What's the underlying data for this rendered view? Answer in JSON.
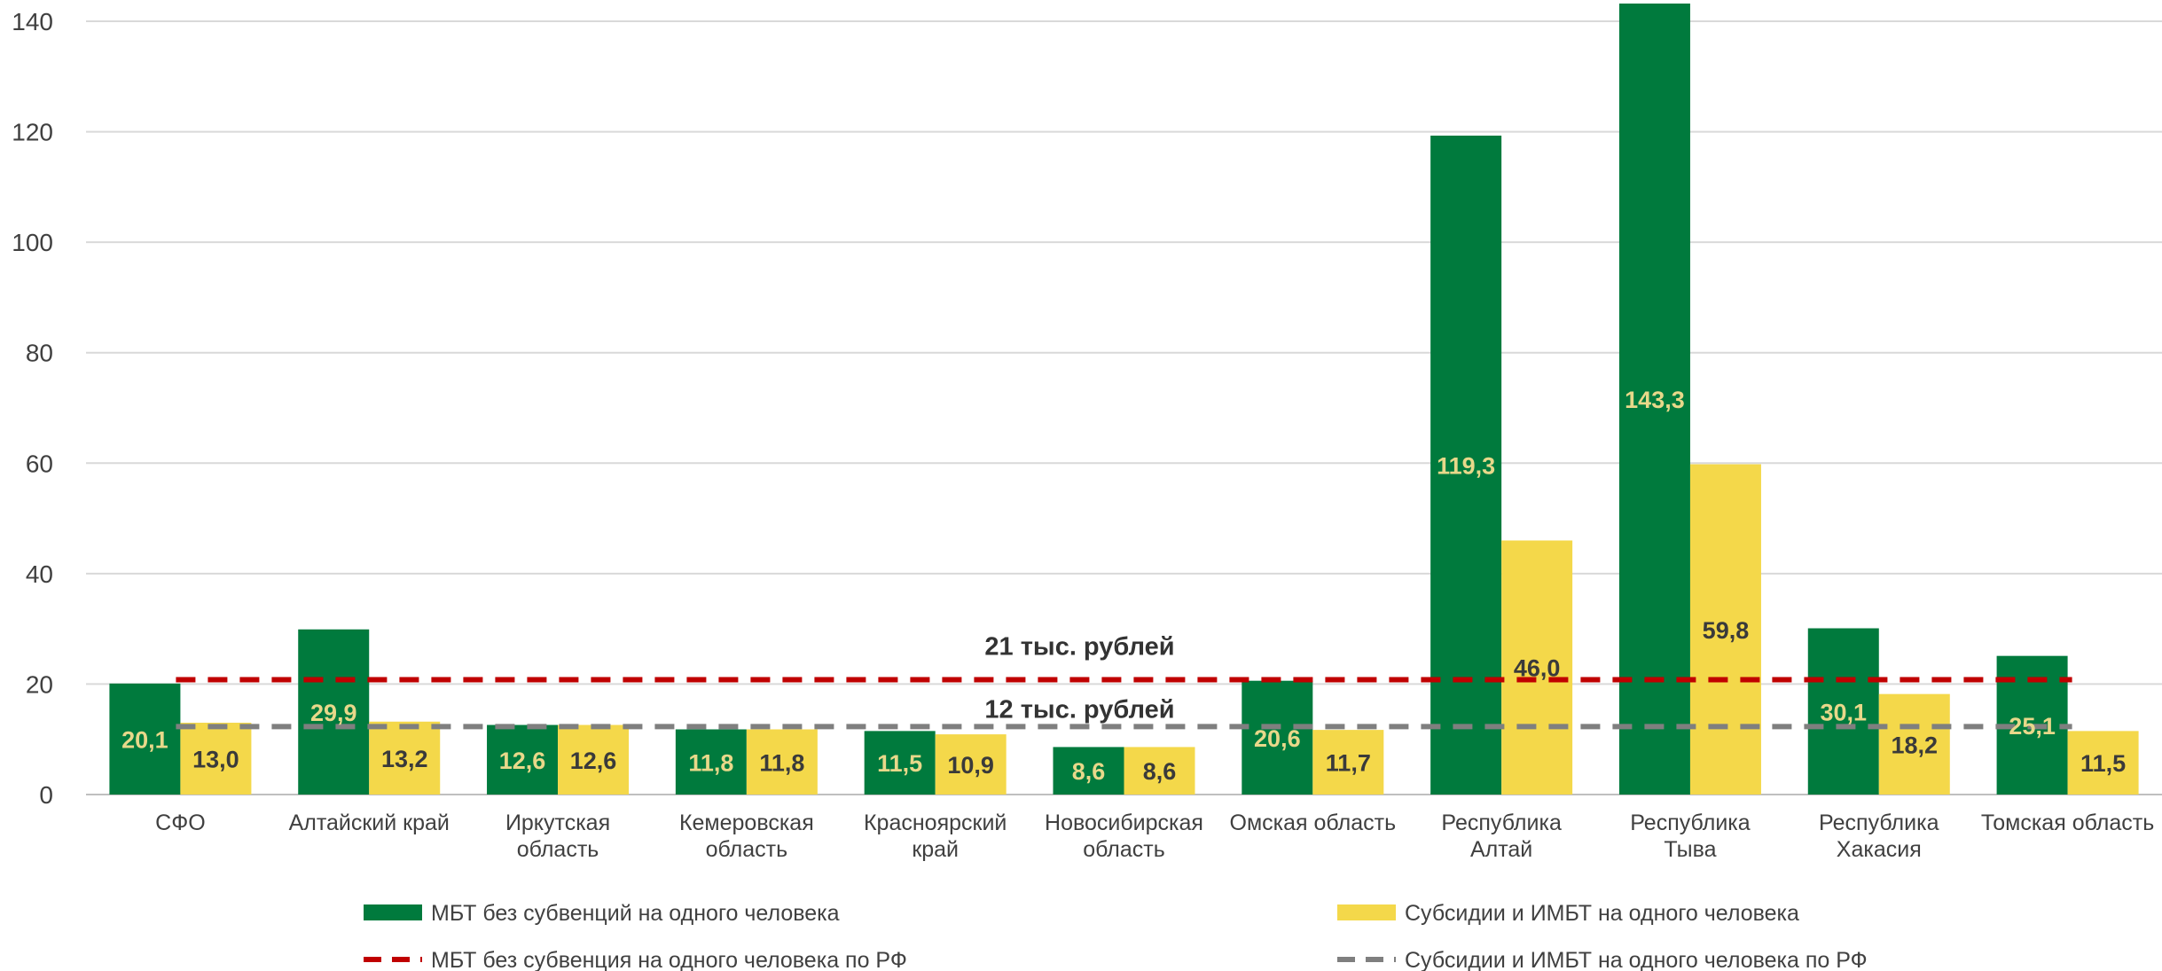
{
  "chart_data": {
    "type": "bar",
    "categories": [
      [
        "СФО"
      ],
      [
        "Алтайский край"
      ],
      [
        "Иркутская",
        "область"
      ],
      [
        "Кемеровская",
        "область"
      ],
      [
        "Красноярский",
        "край"
      ],
      [
        "Новосибирская",
        "область"
      ],
      [
        "Омская область"
      ],
      [
        "Республика",
        "Алтай"
      ],
      [
        "Республика",
        "Тыва"
      ],
      [
        "Республика",
        "Хакасия"
      ],
      [
        "Томская область"
      ]
    ],
    "series": [
      {
        "name": "МБТ без субвенций на одного человека",
        "color": "#007A3D",
        "label_color": "#E8D88A",
        "values": [
          20.1,
          29.9,
          12.6,
          11.8,
          11.5,
          8.6,
          20.6,
          119.3,
          143.3,
          30.1,
          25.1
        ],
        "labels": [
          "20,1",
          "29,9",
          "12,6",
          "11,8",
          "11,5",
          "8,6",
          "20,6",
          "119,3",
          "143,3",
          "30,1",
          "25,1"
        ]
      },
      {
        "name": "Субсидии и ИМБТ на одного человека",
        "color": "#F4D84A",
        "label_color": "#3A3A3A",
        "values": [
          13.0,
          13.2,
          12.6,
          11.8,
          10.9,
          8.6,
          11.7,
          46.0,
          59.8,
          18.2,
          11.5
        ],
        "labels": [
          "13,0",
          "13,2",
          "12,6",
          "11,8",
          "10,9",
          "8,6",
          "11,7",
          "46,0",
          "59,8",
          "18,2",
          "11,5"
        ]
      }
    ],
    "reference_lines": [
      {
        "name": "МБТ без субвенция на одного человека по РФ",
        "value": 20.8,
        "color": "#C00000",
        "annotation": "21 тыс. рублей"
      },
      {
        "name": "Субсидии и ИМБТ на одного человека по РФ",
        "value": 12.3,
        "color": "#7F7F7F",
        "annotation": "12 тыс. рублей"
      }
    ],
    "ylim": [
      0,
      145
    ],
    "yticks": [
      0,
      20,
      40,
      60,
      80,
      100,
      120,
      140
    ],
    "grid": true,
    "legend_position": "bottom"
  }
}
